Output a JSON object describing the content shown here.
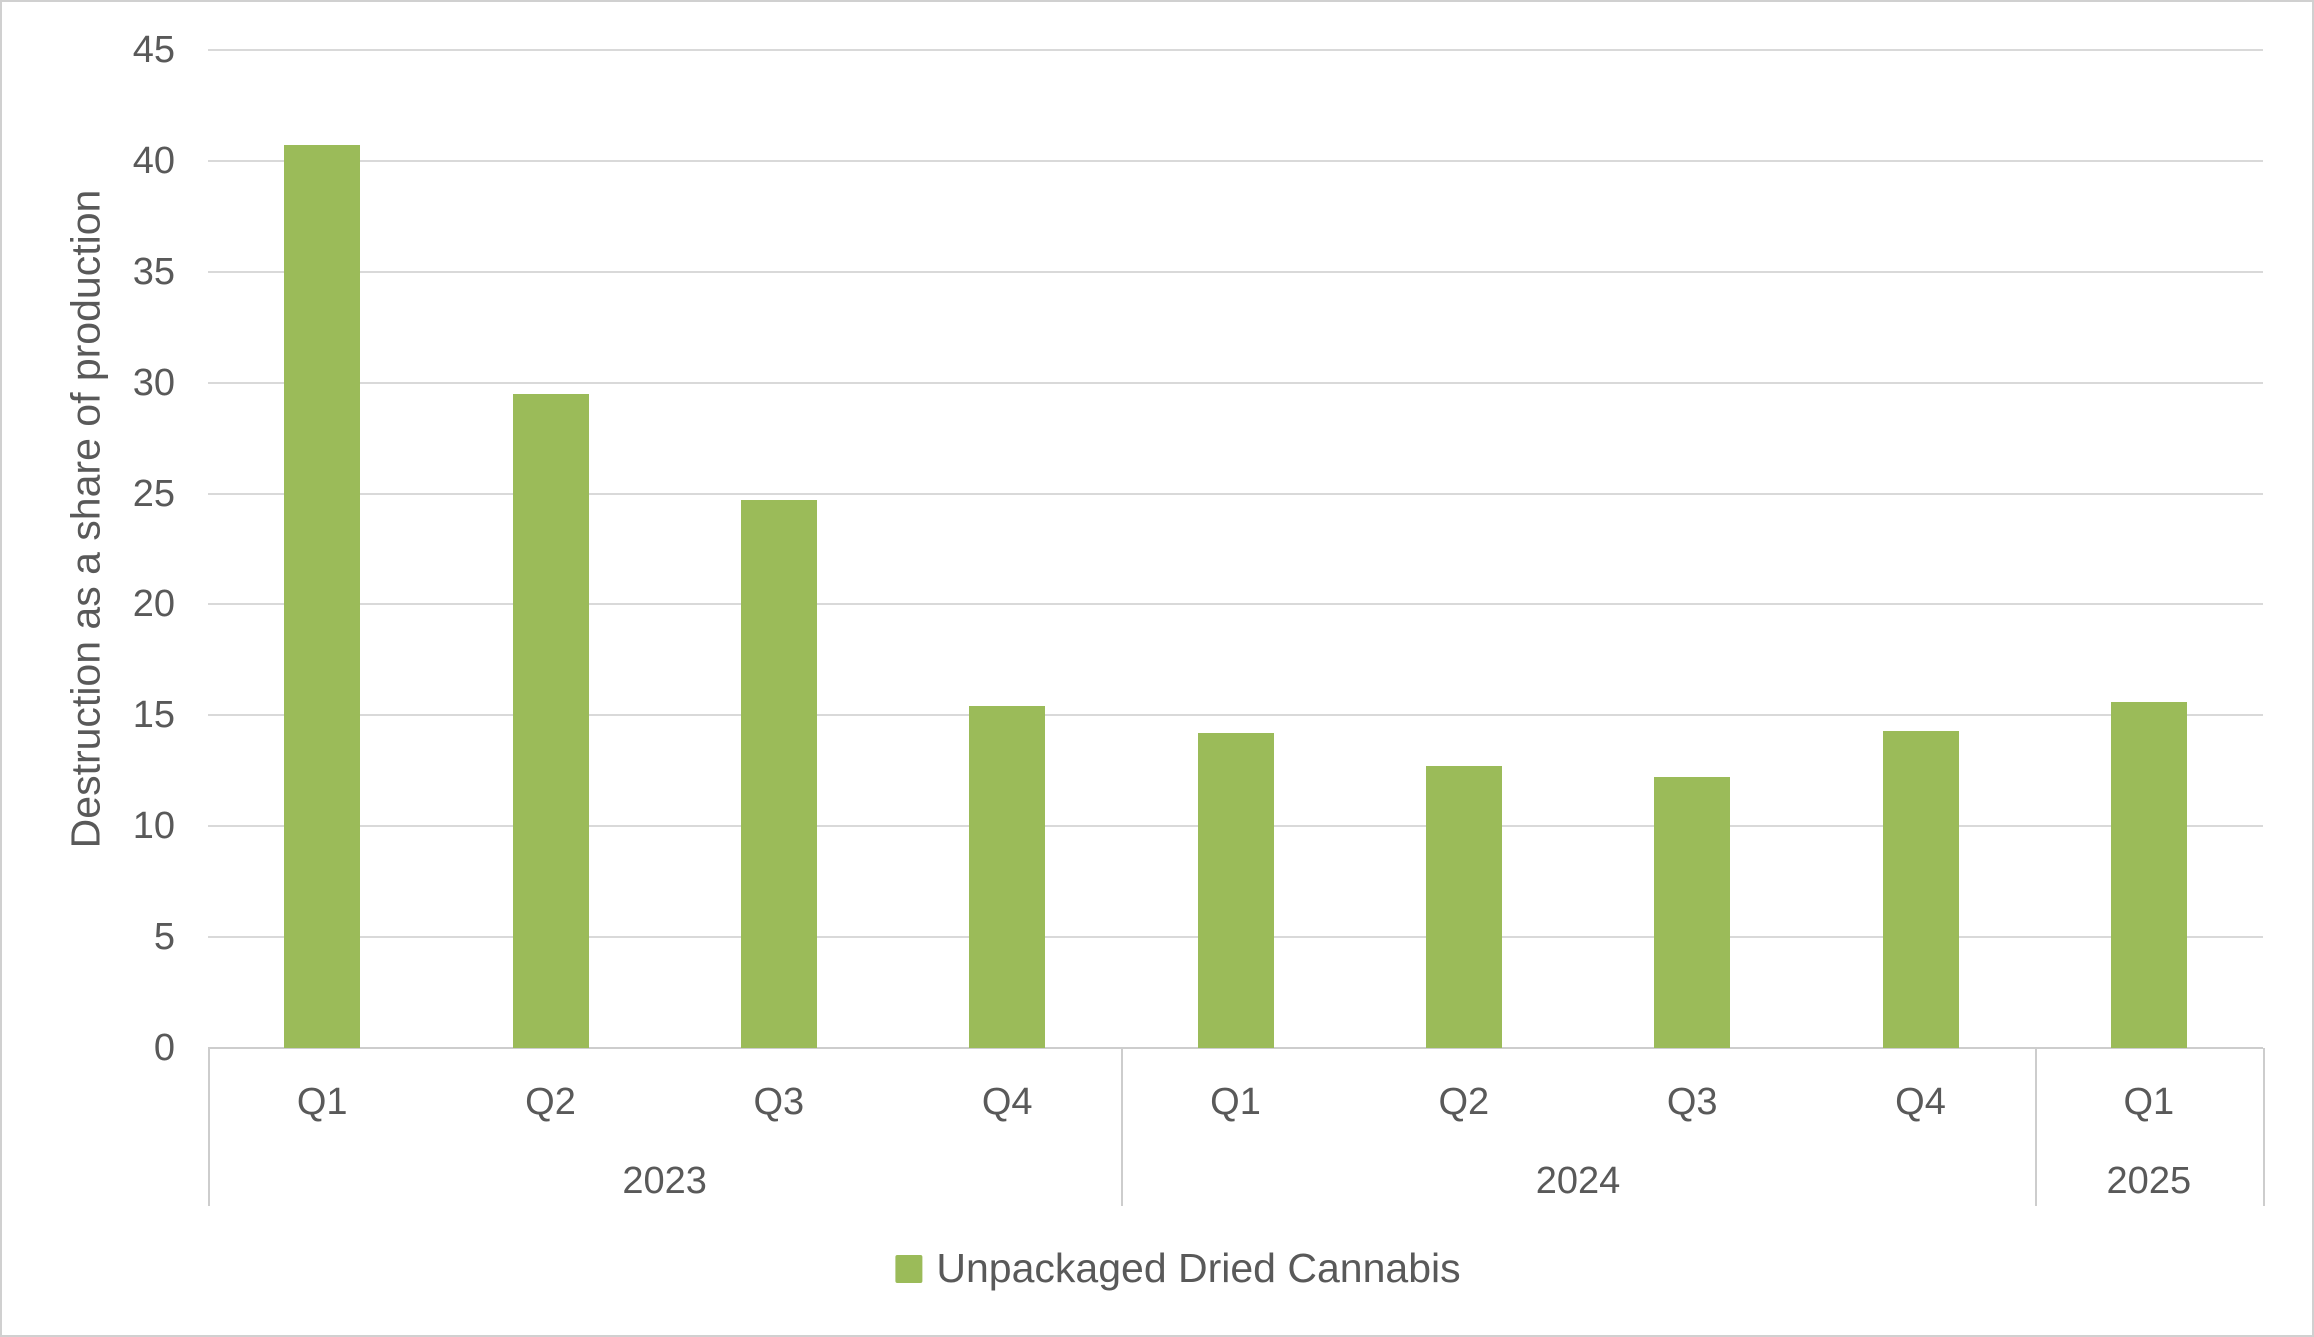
{
  "chart_data": {
    "type": "bar",
    "title": "",
    "xlabel": "",
    "ylabel": "Destruction as a share of production",
    "ylim": [
      0,
      45
    ],
    "yticks": [
      0,
      5,
      10,
      15,
      20,
      25,
      30,
      35,
      40,
      45
    ],
    "grid": true,
    "categories": [
      "Q1",
      "Q2",
      "Q3",
      "Q4",
      "Q1",
      "Q2",
      "Q3",
      "Q4",
      "Q1"
    ],
    "category_groups": [
      {
        "label": "2023",
        "span": 4
      },
      {
        "label": "2024",
        "span": 4
      },
      {
        "label": "2025",
        "span": 1
      }
    ],
    "series": [
      {
        "name": "Unpackaged Dried Cannabis",
        "color": "#9bbb59",
        "values": [
          40.7,
          29.5,
          24.7,
          15.4,
          14.2,
          12.7,
          12.2,
          14.3,
          15.6
        ]
      }
    ],
    "legend": {
      "position": "bottom",
      "entries": [
        {
          "label": "Unpackaged Dried Cannabis",
          "color": "#9bbb59"
        }
      ]
    }
  },
  "colors": {
    "bar": "#9bbb59",
    "text": "#595959",
    "gridline": "#d9d9d9",
    "axisline": "#cdcdcd",
    "border": "#d0d0d0",
    "background": "#ffffff"
  }
}
